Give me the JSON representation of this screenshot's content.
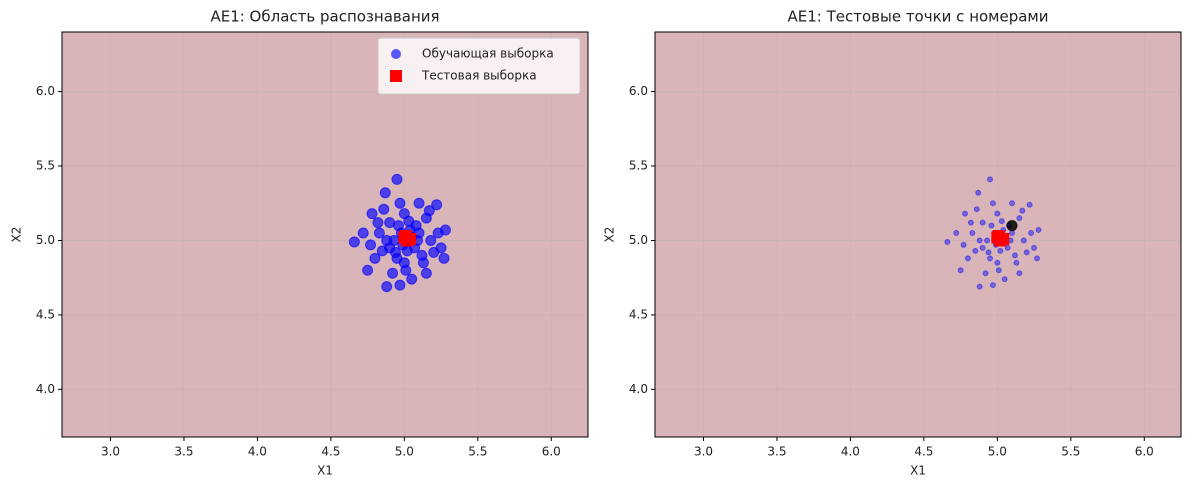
{
  "chart_data": [
    {
      "type": "scatter",
      "title": "AE1: Область распознавания",
      "xlabel": "X1",
      "ylabel": "X2",
      "xlim": [
        2.67,
        6.25
      ],
      "ylim": [
        3.68,
        6.4
      ],
      "xticks": [
        {
          "value": 3,
          "label": "3.0"
        },
        3.5,
        {
          "value": 4,
          "label": "4.0"
        },
        4.5,
        {
          "value": 5,
          "label": "5.0"
        },
        5.5,
        {
          "value": 6,
          "label": "6.0"
        }
      ],
      "yticks": [
        {
          "value": 4,
          "label": "4.0"
        },
        4.5,
        {
          "value": 5,
          "label": "5.0"
        },
        5.5,
        {
          "value": 6,
          "label": "6.0"
        }
      ],
      "grid": true,
      "background": "#d9b5b9",
      "legend": "upper right",
      "series": [
        {
          "name": "Обучающая выборка",
          "color": "#0000ff",
          "marker": "circle",
          "size": 5,
          "opacity": 0.65,
          "x": [
            4.95,
            4.87,
            4.88,
            4.97,
            4.66,
            5.28,
            5.22,
            5.27,
            4.75,
            4.78,
            5.1,
            5.15,
            4.92,
            5.05,
            4.83,
            4.9,
            5.0,
            5.08,
            5.18,
            5.12,
            4.95,
            4.85,
            5.02,
            4.98,
            5.05,
            4.93,
            5.1,
            4.88,
            5.0,
            5.2,
            4.8,
            4.72,
            5.15,
            4.97,
            5.03,
            4.9,
            5.07,
            4.96,
            5.23,
            4.82,
            5.13,
            4.99,
            5.04,
            4.94,
            5.09,
            4.86,
            5.17,
            4.77,
            5.01,
            5.25
          ],
          "values": [
            5.41,
            5.32,
            4.69,
            4.7,
            4.99,
            5.07,
            5.24,
            4.88,
            4.8,
            5.18,
            5.25,
            4.78,
            4.78,
            4.74,
            5.05,
            5.12,
            5.18,
            5.1,
            5.0,
            4.9,
            4.88,
            4.93,
            4.93,
            5.05,
            5.02,
            5.0,
            5.05,
            5.0,
            4.85,
            4.92,
            4.88,
            5.05,
            5.15,
            5.25,
            5.13,
            4.95,
            4.95,
            5.1,
            5.05,
            5.12,
            4.85,
            4.97,
            5.07,
            4.92,
            5.0,
            5.21,
            5.2,
            4.97,
            4.8,
            4.95
          ]
        },
        {
          "name": "Тестовая выборка",
          "color": "#ff0000",
          "marker": "square",
          "size": 6,
          "opacity": 1,
          "x": [
            5.0,
            5.02,
            5.04,
            5.01
          ],
          "values": [
            5.02,
            5.0,
            5.01,
            5.03
          ]
        }
      ]
    },
    {
      "type": "scatter",
      "title": "AE1: Тестовые точки с номерами",
      "xlabel": "X1",
      "ylabel": "X2",
      "xlim": [
        2.67,
        6.25
      ],
      "ylim": [
        3.68,
        6.4
      ],
      "xticks": [
        {
          "value": 3,
          "label": "3.0"
        },
        3.5,
        {
          "value": 4,
          "label": "4.0"
        },
        4.5,
        {
          "value": 5,
          "label": "5.0"
        },
        5.5,
        {
          "value": 6,
          "label": "6.0"
        }
      ],
      "yticks": [
        {
          "value": 4,
          "label": "4.0"
        },
        4.5,
        {
          "value": 5,
          "label": "5.0"
        },
        5.5,
        {
          "value": 6,
          "label": "6.0"
        }
      ],
      "grid": true,
      "background": "#d9b5b9",
      "series": [
        {
          "color": "#0000ff",
          "marker": "circle",
          "size": 2.5,
          "opacity": 0.45,
          "x": [
            4.95,
            4.87,
            4.88,
            4.97,
            4.66,
            5.28,
            5.22,
            5.27,
            4.75,
            4.78,
            5.1,
            5.15,
            4.92,
            5.05,
            4.83,
            4.9,
            5.0,
            5.08,
            5.18,
            5.12,
            4.95,
            4.85,
            5.02,
            4.98,
            5.05,
            4.93,
            5.1,
            4.88,
            5.0,
            5.2,
            4.8,
            4.72,
            5.15,
            4.97,
            5.03,
            4.9,
            5.07,
            4.96,
            5.23,
            4.82,
            5.13,
            4.99,
            5.04,
            4.94,
            5.09,
            4.86,
            5.17,
            4.77,
            5.01,
            5.25
          ],
          "values": [
            5.41,
            5.32,
            4.69,
            4.7,
            4.99,
            5.07,
            5.24,
            4.88,
            4.8,
            5.18,
            5.25,
            4.78,
            4.78,
            4.74,
            5.05,
            5.12,
            5.18,
            5.1,
            5.0,
            4.9,
            4.88,
            4.93,
            4.93,
            5.05,
            5.02,
            5.0,
            5.05,
            5.0,
            4.85,
            4.92,
            4.88,
            5.05,
            5.15,
            5.25,
            5.13,
            4.95,
            4.95,
            5.1,
            5.05,
            5.12,
            4.85,
            4.97,
            5.07,
            4.92,
            5.0,
            5.21,
            5.2,
            4.97,
            4.8,
            4.95
          ]
        },
        {
          "color": "#ff0000",
          "marker": "square",
          "size": 6,
          "opacity": 1,
          "x": [
            5.0,
            5.02,
            5.04,
            5.01
          ],
          "values": [
            5.02,
            5.0,
            5.01,
            5.03
          ]
        },
        {
          "color": "#000000",
          "marker": "circle",
          "size": 5,
          "opacity": 0.85,
          "x": [
            5.1
          ],
          "values": [
            5.1
          ]
        }
      ]
    }
  ]
}
